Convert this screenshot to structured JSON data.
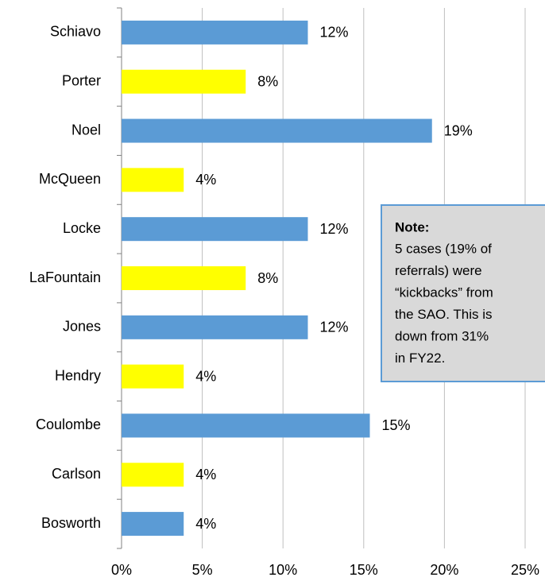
{
  "chart_data": {
    "type": "bar",
    "orientation": "horizontal",
    "categories": [
      "Schiavo",
      "Porter",
      "Noel",
      "McQueen",
      "Locke",
      "LaFountain",
      "Jones",
      "Hendry",
      "Coulombe",
      "Carlson",
      "Bosworth"
    ],
    "values": [
      11.54,
      7.69,
      19.23,
      3.85,
      11.54,
      7.69,
      11.54,
      3.85,
      15.38,
      3.85,
      3.85
    ],
    "value_labels": [
      "12%",
      "8%",
      "19%",
      "4%",
      "12%",
      "8%",
      "12%",
      "4%",
      "15%",
      "4%",
      "4%"
    ],
    "colors": [
      "#5b9bd5",
      "#ffff00",
      "#5b9bd5",
      "#ffff00",
      "#5b9bd5",
      "#ffff00",
      "#5b9bd5",
      "#ffff00",
      "#5b9bd5",
      "#ffff00",
      "#5b9bd5"
    ],
    "xlim": [
      0,
      25
    ],
    "xticks": [
      {
        "value": 0,
        "label": "0%"
      },
      {
        "value": 5,
        "label": "5%"
      },
      {
        "value": 10,
        "label": "10%"
      },
      {
        "value": 15,
        "label": "15%"
      },
      {
        "value": 20,
        "label": "20%"
      },
      {
        "value": 25,
        "label": "25%"
      }
    ],
    "grid": true,
    "annotation": {
      "title": "Note:",
      "lines": [
        "5 cases (19% of",
        "referrals) were",
        "“kickbacks” from",
        "the SAO. This is",
        "down from 31%",
        "in FY22."
      ]
    }
  }
}
